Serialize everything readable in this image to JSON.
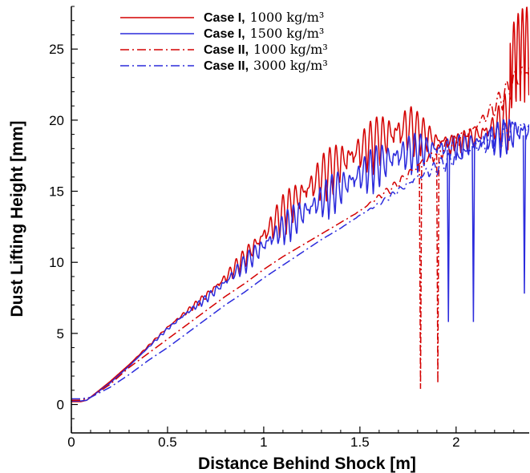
{
  "chart_data": {
    "type": "line",
    "xlabel": "Distance Behind Shock [m]",
    "ylabel": "Dust Lifting Height [mm]",
    "xlim": [
      0,
      2.38
    ],
    "ylim": [
      -2,
      28
    ],
    "xticks": [
      {
        "value": 0,
        "label": "0"
      },
      {
        "value": 0.5,
        "label": "0.5"
      },
      {
        "value": 1,
        "label": "1"
      },
      {
        "value": 1.5,
        "label": "1.5"
      },
      {
        "value": 2,
        "label": "2"
      }
    ],
    "yticks": [
      {
        "value": 0,
        "label": "0"
      },
      {
        "value": 5,
        "label": "5"
      },
      {
        "value": 10,
        "label": "10"
      },
      {
        "value": 15,
        "label": "15"
      },
      {
        "value": 20,
        "label": "20"
      },
      {
        "value": 25,
        "label": "25"
      }
    ],
    "legend_position": "top-left",
    "grid": false,
    "series": [
      {
        "name": "Case I, 1000 kg/m3",
        "legend_main": "Case I,",
        "legend_detail": "1000 kg/m³",
        "color": "#d40000",
        "dash": "solid",
        "x": [
          0,
          0.05,
          0.08,
          0.2,
          0.3,
          0.4,
          0.5,
          0.6,
          0.7,
          0.8,
          0.9,
          1.0,
          1.1,
          1.2,
          1.3,
          1.4,
          1.5,
          1.6,
          1.7,
          1.75,
          1.8,
          1.9,
          2.0,
          2.1,
          2.2,
          2.25,
          2.3,
          2.33,
          2.36,
          2.38
        ],
        "y": [
          0.2,
          0.2,
          0.3,
          1.6,
          2.8,
          4.1,
          5.4,
          6.5,
          7.6,
          8.8,
          10.2,
          11.7,
          13.2,
          14.5,
          15.7,
          16.7,
          17.5,
          18.3,
          18.8,
          19.1,
          18.9,
          18.4,
          18.3,
          18.7,
          19.3,
          19.6,
          20.5,
          21.0,
          21.3,
          21.5
        ],
        "amp": [
          0,
          0,
          0,
          0,
          0,
          0.1,
          0.2,
          0.3,
          0.5,
          0.8,
          1.2,
          1.8,
          2.4,
          2.8,
          3.0,
          3.0,
          3.0,
          3.2,
          3.6,
          3.5,
          2.6,
          1.5,
          1.1,
          1.4,
          2.4,
          3.4,
          4.0,
          4.2,
          4.2,
          4.0
        ],
        "freq": 90,
        "spike_up": true
      },
      {
        "name": "Case I, 1500 kg/m3",
        "legend_main": "Case I,",
        "legend_detail": "1500 kg/m³",
        "color": "#2b2bdc",
        "dash": "solid",
        "x": [
          0,
          0.05,
          0.08,
          0.2,
          0.3,
          0.4,
          0.5,
          0.6,
          0.7,
          0.8,
          0.9,
          1.0,
          1.1,
          1.2,
          1.3,
          1.4,
          1.5,
          1.6,
          1.7,
          1.8,
          1.9,
          2.0,
          2.1,
          2.2,
          2.3,
          2.38
        ],
        "y": [
          0.25,
          0.25,
          0.3,
          1.5,
          2.7,
          4.0,
          5.3,
          6.4,
          7.4,
          8.5,
          9.8,
          11.0,
          12.2,
          13.2,
          14.1,
          15.0,
          15.8,
          16.6,
          17.2,
          17.6,
          17.8,
          18.0,
          18.2,
          18.5,
          18.8,
          19.0
        ],
        "amp": [
          0,
          0,
          0,
          0,
          0,
          0.1,
          0.2,
          0.3,
          0.5,
          0.8,
          1.1,
          1.5,
          1.9,
          2.2,
          2.4,
          2.5,
          2.6,
          2.7,
          2.7,
          2.3,
          1.7,
          1.4,
          1.6,
          2.0,
          2.4,
          2.5
        ],
        "freq": 95,
        "dips": [
          {
            "x": 1.96,
            "y": 5.8
          },
          {
            "x": 2.09,
            "y": 5.8
          },
          {
            "x": 2.355,
            "y": 7.8
          }
        ]
      },
      {
        "name": "Case II, 1000 kg/m3",
        "legend_main": "Case II,",
        "legend_detail": "1000 kg/m³",
        "color": "#d40000",
        "dash": "dashdot",
        "x": [
          0,
          0.05,
          0.1,
          0.2,
          0.3,
          0.4,
          0.5,
          0.6,
          0.7,
          0.8,
          0.9,
          1.0,
          1.1,
          1.2,
          1.3,
          1.4,
          1.5,
          1.6,
          1.7,
          1.8,
          1.9,
          2.0,
          2.1,
          2.2,
          2.3,
          2.38
        ],
        "y": [
          0.3,
          0.3,
          0.5,
          1.4,
          2.6,
          3.6,
          4.6,
          5.6,
          6.6,
          7.6,
          8.5,
          9.5,
          10.4,
          11.2,
          12.0,
          12.8,
          13.6,
          14.6,
          15.5,
          16.7,
          17.6,
          18.4,
          19.4,
          20.8,
          22.5,
          23.5
        ],
        "amp": [
          0,
          0,
          0,
          0,
          0,
          0,
          0,
          0,
          0,
          0,
          0,
          0,
          0,
          0,
          0,
          0,
          0.1,
          0.3,
          0.6,
          0.9,
          1.0,
          0.9,
          1.0,
          1.2,
          1.5,
          1.6
        ],
        "freq": 70,
        "dips": [
          {
            "x": 1.815,
            "y": 1.1
          },
          {
            "x": 1.905,
            "y": 1.5
          }
        ]
      },
      {
        "name": "Case II, 3000 kg/m3",
        "legend_main": "Case II,",
        "legend_detail": "3000 kg/m³",
        "color": "#2b2bdc",
        "dash": "dashdot",
        "x": [
          0,
          0.05,
          0.1,
          0.2,
          0.3,
          0.4,
          0.5,
          0.6,
          0.7,
          0.8,
          0.9,
          1.0,
          1.1,
          1.2,
          1.3,
          1.4,
          1.5,
          1.6,
          1.7,
          1.8,
          1.9,
          2.0,
          2.1,
          2.2,
          2.3,
          2.38
        ],
        "y": [
          0.4,
          0.4,
          0.5,
          1.2,
          2.1,
          3.1,
          4.0,
          5.0,
          6.0,
          7.0,
          7.9,
          8.9,
          9.8,
          10.7,
          11.6,
          12.4,
          13.3,
          14.1,
          15.0,
          15.9,
          16.6,
          17.3,
          18.0,
          18.6,
          19.2,
          19.5
        ],
        "amp": [
          0,
          0,
          0,
          0,
          0,
          0,
          0,
          0,
          0,
          0,
          0,
          0,
          0,
          0,
          0,
          0,
          0.1,
          0.2,
          0.4,
          0.7,
          0.9,
          1.1,
          1.3,
          1.4,
          1.6,
          1.6
        ],
        "freq": 75
      }
    ]
  }
}
